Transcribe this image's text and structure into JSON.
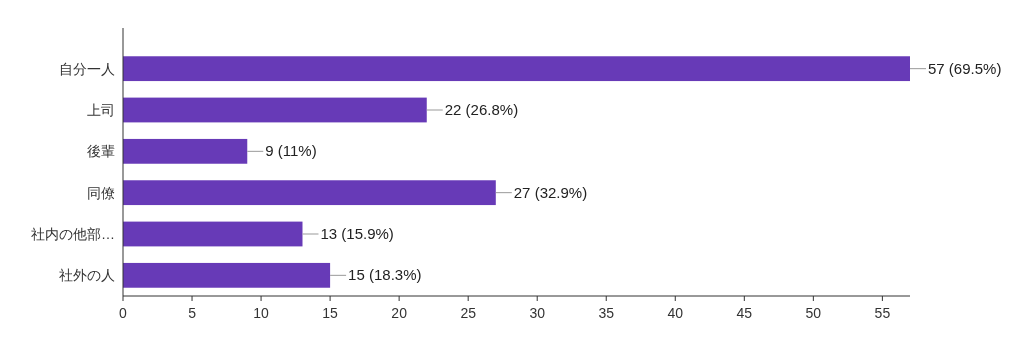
{
  "chart_data": {
    "type": "bar",
    "orientation": "horizontal",
    "categories": [
      "自分一人",
      "上司",
      "後輩",
      "同僚",
      "社内の他部…",
      "社外の人"
    ],
    "values": [
      57,
      22,
      9,
      27,
      13,
      15
    ],
    "value_labels": [
      "57 (69.5%)",
      "22 (26.8%)",
      "9 (11%)",
      "27 (32.9%)",
      "13 (15.9%)",
      "15 (18.3%)"
    ],
    "color": "#673ab7",
    "xlim": [
      0,
      57
    ],
    "xticks": [
      0,
      5,
      10,
      15,
      20,
      25,
      30,
      35,
      40,
      45,
      50,
      55
    ],
    "grid": false
  }
}
